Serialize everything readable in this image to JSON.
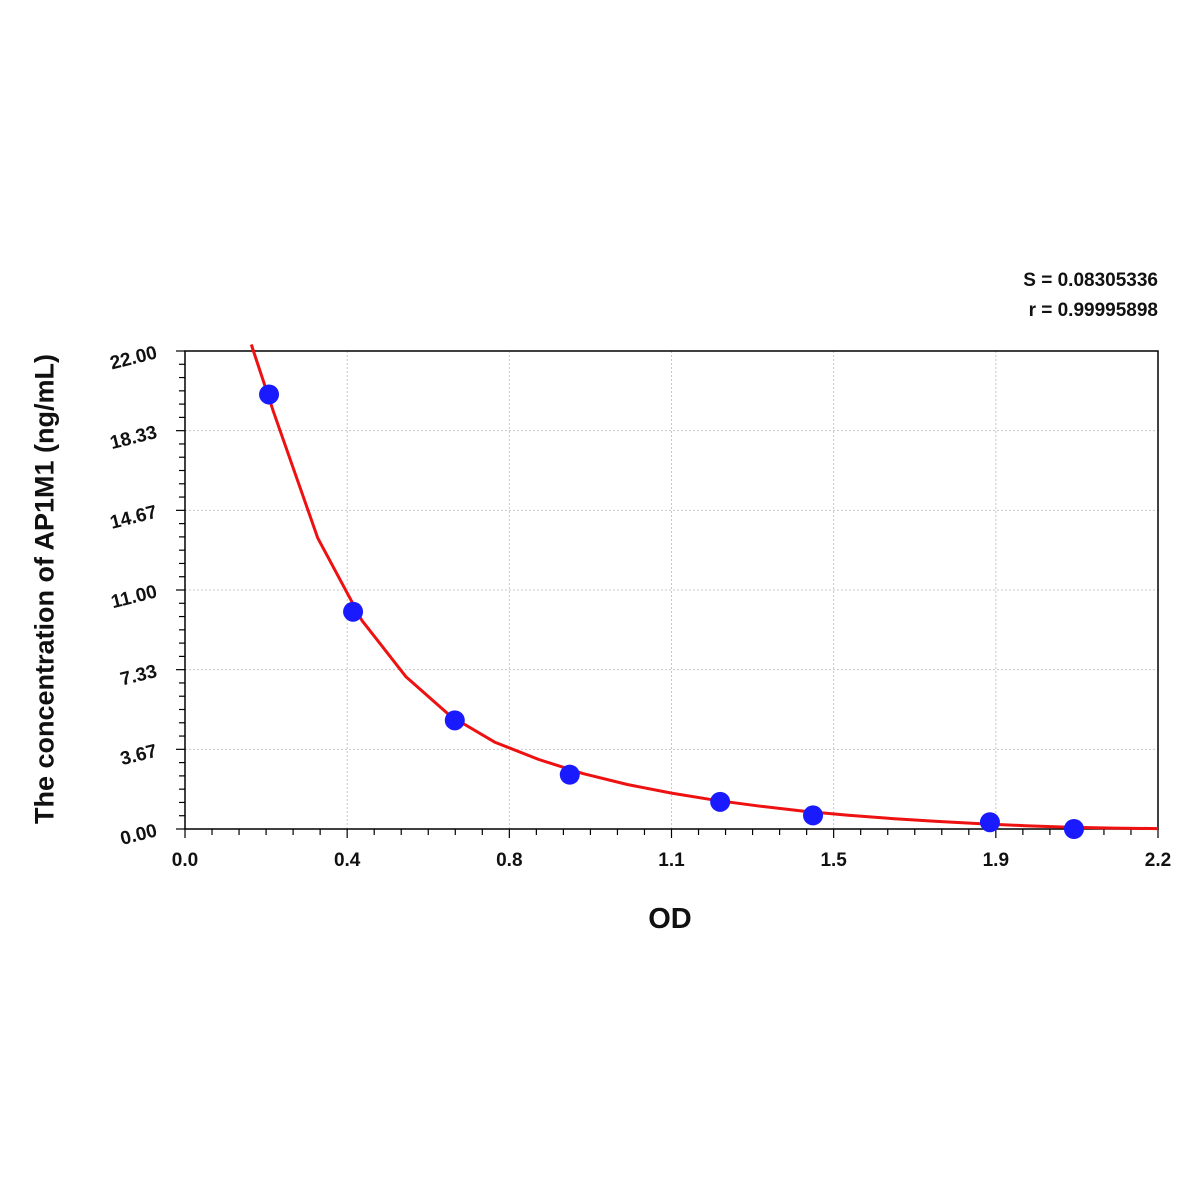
{
  "chart_data": {
    "type": "scatter",
    "xlabel": "OD",
    "ylabel": "The concentration of AP1M1 (ng/mL)",
    "annotations": {
      "s": "S = 0.08305336",
      "r": "r = 0.99995898"
    },
    "xlim": [
      0.0,
      2.2
    ],
    "ylim": [
      0.0,
      22.0
    ],
    "x_ticks": [
      "0.0",
      "0.4",
      "0.8",
      "1.1",
      "1.5",
      "1.9",
      "2.2"
    ],
    "y_ticks": [
      "0.00",
      "3.67",
      "7.33",
      "11.00",
      "14.67",
      "18.33",
      "22.00"
    ],
    "grid": true,
    "series": [
      {
        "type": "scatter",
        "color": "#1a1aff",
        "points": [
          {
            "x": 0.19,
            "y": 20.0
          },
          {
            "x": 0.38,
            "y": 10.0
          },
          {
            "x": 0.61,
            "y": 5.0
          },
          {
            "x": 0.87,
            "y": 2.5
          },
          {
            "x": 1.21,
            "y": 1.25
          },
          {
            "x": 1.42,
            "y": 0.625
          },
          {
            "x": 1.82,
            "y": 0.3125
          },
          {
            "x": 2.01,
            "y": 0.0
          }
        ]
      },
      {
        "type": "line",
        "color": "#ee1111",
        "points": [
          {
            "x": 0.15,
            "y": 22.3
          },
          {
            "x": 0.2,
            "y": 19.2
          },
          {
            "x": 0.3,
            "y": 13.4
          },
          {
            "x": 0.4,
            "y": 9.6
          },
          {
            "x": 0.5,
            "y": 7.0
          },
          {
            "x": 0.6,
            "y": 5.2
          },
          {
            "x": 0.7,
            "y": 4.0
          },
          {
            "x": 0.8,
            "y": 3.2
          },
          {
            "x": 0.9,
            "y": 2.55
          },
          {
            "x": 1.0,
            "y": 2.05
          },
          {
            "x": 1.1,
            "y": 1.65
          },
          {
            "x": 1.2,
            "y": 1.32
          },
          {
            "x": 1.3,
            "y": 1.05
          },
          {
            "x": 1.4,
            "y": 0.82
          },
          {
            "x": 1.5,
            "y": 0.63
          },
          {
            "x": 1.6,
            "y": 0.48
          },
          {
            "x": 1.7,
            "y": 0.35
          },
          {
            "x": 1.8,
            "y": 0.24
          },
          {
            "x": 1.9,
            "y": 0.15
          },
          {
            "x": 2.0,
            "y": 0.08
          },
          {
            "x": 2.1,
            "y": 0.04
          },
          {
            "x": 2.2,
            "y": 0.02
          }
        ]
      }
    ]
  }
}
